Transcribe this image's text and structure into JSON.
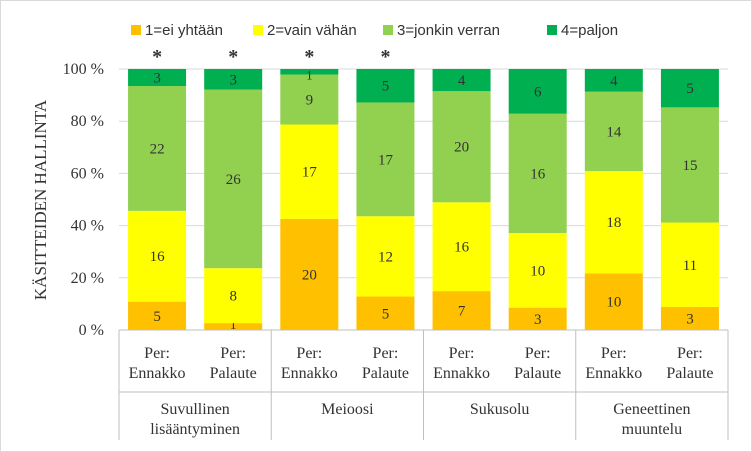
{
  "chart_data": {
    "type": "bar",
    "stacked": "percent",
    "title": "",
    "ylabel": "KÄSITTEIDEN HALLINTA",
    "xlabel": "",
    "ylim": [
      0,
      100
    ],
    "yticks": [
      "0 %",
      "20 %",
      "40 %",
      "60 %",
      "80 %",
      "100 %"
    ],
    "grid": true,
    "legend_position": "top",
    "groups": [
      {
        "label": "Suvullinen lisääntyminen",
        "bars": [
          0,
          1
        ]
      },
      {
        "label": "Meioosi",
        "bars": [
          2,
          3
        ]
      },
      {
        "label": "Sukusolu",
        "bars": [
          4,
          5
        ]
      },
      {
        "label": "Geneettinen muuntelu",
        "bars": [
          6,
          7
        ]
      }
    ],
    "categories": [
      "Per: Ennakko",
      "Per: Palaute",
      "Per: Ennakko",
      "Per: Palaute",
      "Per: Ennakko",
      "Per: Palaute",
      "Per: Ennakko",
      "Per: Palaute"
    ],
    "significance": [
      "*",
      "*",
      "*",
      "*",
      "",
      "",
      "",
      ""
    ],
    "series": [
      {
        "name": "1=ei yhtään",
        "color": "#FFC000",
        "values": [
          5,
          1,
          20,
          5,
          7,
          3,
          10,
          3
        ]
      },
      {
        "name": "2=vain vähän",
        "color": "#FFFF00",
        "values": [
          16,
          8,
          17,
          12,
          16,
          10,
          18,
          11
        ]
      },
      {
        "name": "3=jonkin verran",
        "color": "#92D050",
        "values": [
          22,
          26,
          9,
          17,
          20,
          16,
          14,
          15
        ]
      },
      {
        "name": "4=paljon",
        "color": "#00B050",
        "values": [
          3,
          3,
          1,
          5,
          4,
          6,
          4,
          5
        ]
      }
    ]
  }
}
